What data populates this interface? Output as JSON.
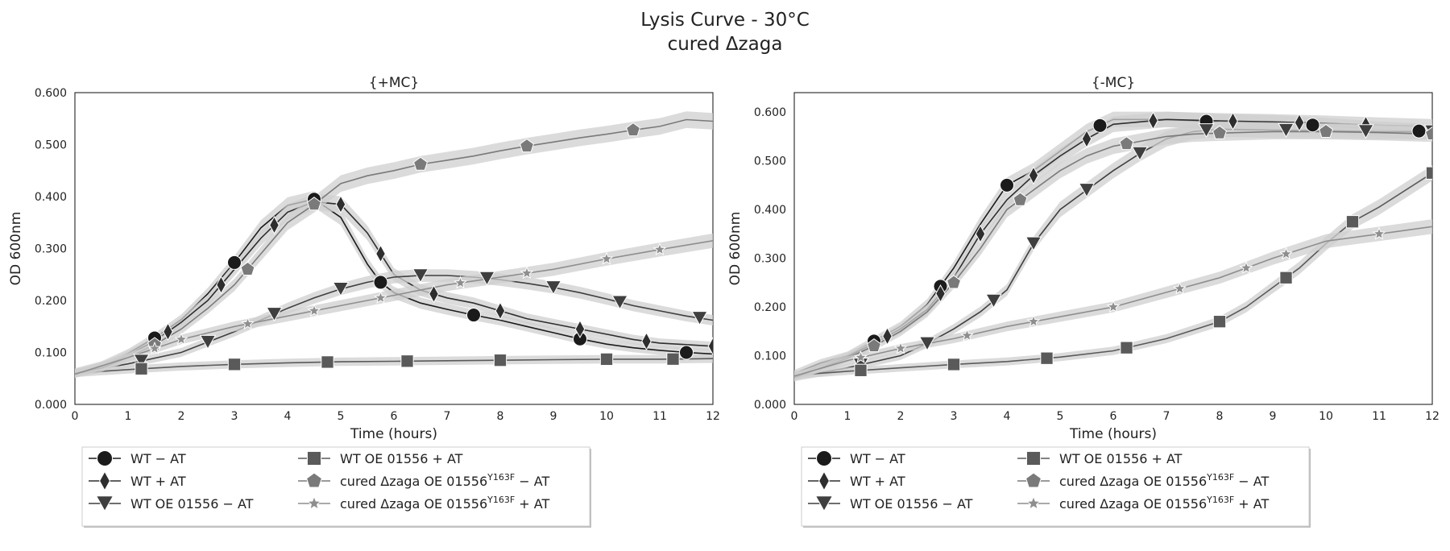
{
  "figure": {
    "title_line1": "Lysis Curve - 30°C",
    "title_line2": "cured Δzaga"
  },
  "colors": {
    "wt_minus_at": "#1b1b1b",
    "wt_plus_at": "#2e2e2e",
    "wtoe_minus_at": "#3f3f3f",
    "wtoe_plus_at": "#5a5a5a",
    "cured_minus_at": "#7a7a7a",
    "cured_plus_at": "#8e8e8e",
    "band": "#cfcfcf"
  },
  "chart_data": [
    {
      "type": "line",
      "title": "{+MC}",
      "xlabel": "Time (hours)",
      "ylabel": "OD 600nm",
      "xlim": [
        0,
        12
      ],
      "ylim": [
        0,
        0.6
      ],
      "xticks": [
        "0",
        "1",
        "2",
        "3",
        "4",
        "5",
        "6",
        "7",
        "8",
        "9",
        "10",
        "11",
        "12"
      ],
      "yticks": [
        "0.000",
        "0.100",
        "0.200",
        "0.300",
        "0.400",
        "0.500",
        "0.600"
      ],
      "grid": false,
      "legend_position": "below-left",
      "series": [
        {
          "key": "wt_minus_at",
          "marker": "circle",
          "x": [
            0,
            0.5,
            1,
            1.5,
            2,
            2.5,
            3,
            3.5,
            4,
            4.5,
            5,
            5.5,
            5.75,
            6,
            6.5,
            7,
            7.5,
            8,
            8.5,
            9,
            9.5,
            10,
            10.5,
            11,
            11.5,
            12
          ],
          "y": [
            0.062,
            0.075,
            0.098,
            0.128,
            0.163,
            0.213,
            0.273,
            0.34,
            0.383,
            0.395,
            0.36,
            0.27,
            0.235,
            0.215,
            0.195,
            0.183,
            0.172,
            0.162,
            0.15,
            0.138,
            0.126,
            0.116,
            0.109,
            0.104,
            0.1,
            0.097
          ],
          "markers_x": [
            1.5,
            3,
            4.5,
            5.75,
            7.5,
            9.5,
            11.5
          ]
        },
        {
          "key": "wt_plus_at",
          "marker": "diamond",
          "x": [
            0,
            0.5,
            1,
            1.5,
            2,
            2.5,
            3,
            3.5,
            4,
            4.5,
            5,
            5.5,
            6,
            6.5,
            7,
            7.5,
            8,
            8.5,
            9,
            9.5,
            10,
            10.5,
            11,
            11.5,
            12
          ],
          "y": [
            0.06,
            0.072,
            0.095,
            0.122,
            0.158,
            0.2,
            0.26,
            0.32,
            0.37,
            0.39,
            0.385,
            0.33,
            0.25,
            0.22,
            0.205,
            0.195,
            0.18,
            0.165,
            0.155,
            0.145,
            0.135,
            0.125,
            0.118,
            0.115,
            0.112
          ],
          "markers_x": [
            1.75,
            2.75,
            3.75,
            5,
            5.75,
            6.75,
            8,
            9.5,
            10.75,
            12
          ]
        },
        {
          "key": "wtoe_minus_at",
          "marker": "triangle-down",
          "x": [
            0,
            1,
            2,
            3,
            4,
            4.5,
            5,
            5.5,
            6,
            6.5,
            7,
            7.5,
            8,
            8.5,
            9,
            9.5,
            10,
            10.5,
            11,
            11.5,
            12
          ],
          "y": [
            0.06,
            0.078,
            0.1,
            0.14,
            0.185,
            0.205,
            0.222,
            0.235,
            0.245,
            0.248,
            0.248,
            0.245,
            0.24,
            0.233,
            0.225,
            0.215,
            0.203,
            0.19,
            0.18,
            0.17,
            0.162
          ],
          "markers_x": [
            1.25,
            2.5,
            3.75,
            5,
            6.5,
            7.75,
            9,
            10.25,
            11.75
          ]
        },
        {
          "key": "wtoe_plus_at",
          "marker": "square",
          "x": [
            0,
            1,
            2,
            3,
            4,
            5,
            6,
            7,
            8,
            9,
            10,
            11,
            12
          ],
          "y": [
            0.06,
            0.067,
            0.073,
            0.077,
            0.08,
            0.082,
            0.083,
            0.084,
            0.085,
            0.086,
            0.087,
            0.087,
            0.088
          ],
          "markers_x": [
            1.25,
            3,
            4.75,
            6.25,
            8,
            10,
            11.25
          ]
        },
        {
          "key": "cured_minus_at",
          "marker": "pentagon",
          "x": [
            0,
            0.5,
            1,
            1.5,
            2,
            2.5,
            3,
            3.5,
            4,
            4.5,
            5,
            5.5,
            6,
            6.5,
            7,
            7.5,
            8,
            8.5,
            9,
            9.5,
            10,
            10.5,
            11,
            11.5,
            12
          ],
          "y": [
            0.06,
            0.07,
            0.09,
            0.115,
            0.145,
            0.185,
            0.23,
            0.29,
            0.35,
            0.385,
            0.425,
            0.44,
            0.45,
            0.462,
            0.47,
            0.478,
            0.488,
            0.497,
            0.505,
            0.513,
            0.52,
            0.528,
            0.535,
            0.548,
            0.545
          ],
          "markers_x": [
            1.5,
            3.25,
            4.5,
            6.5,
            8.5,
            10.5
          ]
        },
        {
          "key": "cured_plus_at",
          "marker": "star",
          "x": [
            0,
            1,
            2,
            3,
            4,
            5,
            6,
            7,
            8,
            9,
            10,
            11,
            12
          ],
          "y": [
            0.058,
            0.09,
            0.125,
            0.15,
            0.17,
            0.19,
            0.21,
            0.23,
            0.245,
            0.26,
            0.28,
            0.298,
            0.315
          ],
          "markers_x": [
            1.5,
            2,
            3.25,
            4.5,
            5.75,
            7.25,
            8.5,
            10,
            11
          ]
        }
      ]
    },
    {
      "type": "line",
      "title": "{-MC}",
      "xlabel": "Time (hours)",
      "ylabel": "OD 600nm",
      "xlim": [
        0,
        12
      ],
      "ylim": [
        0,
        0.64
      ],
      "xticks": [
        "0",
        "1",
        "2",
        "3",
        "4",
        "5",
        "6",
        "7",
        "8",
        "9",
        "10",
        "11",
        "12"
      ],
      "yticks": [
        "0.000",
        "0.100",
        "0.200",
        "0.300",
        "0.400",
        "0.500",
        "0.600"
      ],
      "grid": false,
      "legend_position": "below-left",
      "series": [
        {
          "key": "wt_minus_at",
          "marker": "circle",
          "x": [
            0,
            0.5,
            1,
            1.5,
            2,
            2.5,
            3,
            3.5,
            4,
            4.5,
            5,
            5.5,
            6,
            7,
            8,
            9,
            10,
            11,
            12
          ],
          "y": [
            0.063,
            0.085,
            0.1,
            0.13,
            0.16,
            0.205,
            0.28,
            0.37,
            0.45,
            0.48,
            0.52,
            0.56,
            0.585,
            0.585,
            0.58,
            0.578,
            0.572,
            0.565,
            0.56
          ],
          "markers_x": [
            1.5,
            2.75,
            4,
            5.75,
            7.75,
            9.75,
            11.75
          ]
        },
        {
          "key": "wt_plus_at",
          "marker": "diamond",
          "x": [
            0,
            0.5,
            1,
            1.5,
            2,
            2.5,
            3,
            3.5,
            4,
            4.5,
            5,
            5.5,
            6,
            7,
            8,
            9,
            10,
            11,
            12
          ],
          "y": [
            0.058,
            0.08,
            0.098,
            0.125,
            0.155,
            0.195,
            0.26,
            0.35,
            0.42,
            0.47,
            0.51,
            0.545,
            0.575,
            0.585,
            0.582,
            0.58,
            0.577,
            0.573,
            0.57
          ],
          "markers_x": [
            1.75,
            2.75,
            3.5,
            4.5,
            5.5,
            6.75,
            8.25,
            9.5,
            10.75
          ]
        },
        {
          "key": "wtoe_minus_at",
          "marker": "triangle-down",
          "x": [
            0,
            1,
            2,
            2.5,
            3,
            3.5,
            4,
            4.5,
            5,
            5.5,
            6,
            6.5,
            7,
            7.5,
            8,
            9,
            10,
            11,
            12
          ],
          "y": [
            0.055,
            0.075,
            0.1,
            0.125,
            0.155,
            0.19,
            0.235,
            0.33,
            0.4,
            0.44,
            0.48,
            0.515,
            0.545,
            0.56,
            0.565,
            0.563,
            0.562,
            0.56,
            0.56
          ],
          "markers_x": [
            1.25,
            2.5,
            3.75,
            4.5,
            5.5,
            6.5,
            7.75,
            9.25,
            10.75,
            12
          ]
        },
        {
          "key": "wtoe_plus_at",
          "marker": "square",
          "x": [
            0,
            1,
            2,
            3,
            4,
            5,
            6,
            7,
            8,
            8.5,
            9,
            9.5,
            10,
            10.5,
            11,
            11.5,
            12
          ],
          "y": [
            0.06,
            0.068,
            0.075,
            0.082,
            0.088,
            0.097,
            0.11,
            0.135,
            0.17,
            0.2,
            0.24,
            0.28,
            0.33,
            0.375,
            0.405,
            0.44,
            0.475
          ],
          "markers_x": [
            1.25,
            3,
            4.75,
            6.25,
            8,
            9.25,
            10.5,
            12
          ]
        },
        {
          "key": "cured_minus_at",
          "marker": "pentagon",
          "x": [
            0,
            0.5,
            1,
            1.5,
            2,
            2.5,
            3,
            3.5,
            4,
            4.5,
            5,
            5.5,
            6,
            6.5,
            7,
            7.5,
            8,
            9,
            10,
            11,
            12
          ],
          "y": [
            0.055,
            0.075,
            0.095,
            0.12,
            0.15,
            0.19,
            0.25,
            0.32,
            0.4,
            0.44,
            0.48,
            0.51,
            0.53,
            0.54,
            0.55,
            0.555,
            0.557,
            0.56,
            0.56,
            0.558,
            0.555
          ],
          "markers_x": [
            1.5,
            3,
            4.25,
            6.25,
            8,
            10,
            12
          ]
        },
        {
          "key": "cured_plus_at",
          "marker": "star",
          "x": [
            0,
            1,
            2,
            3,
            4,
            5,
            6,
            7,
            8,
            9,
            10,
            11,
            12
          ],
          "y": [
            0.058,
            0.09,
            0.115,
            0.135,
            0.16,
            0.18,
            0.2,
            0.23,
            0.26,
            0.3,
            0.335,
            0.35,
            0.365
          ],
          "markers_x": [
            1.25,
            2,
            3.25,
            4.5,
            6,
            7.25,
            8.5,
            9.25,
            11
          ]
        }
      ]
    }
  ],
  "legend": {
    "col1": [
      {
        "key": "wt_minus_at",
        "marker": "circle",
        "label": "WT  − AT"
      },
      {
        "key": "wt_plus_at",
        "marker": "diamond",
        "label": "WT  + AT"
      },
      {
        "key": "wtoe_minus_at",
        "marker": "triangle-down",
        "label": "WT OE 01556  − AT"
      }
    ],
    "col2": [
      {
        "key": "wtoe_plus_at",
        "marker": "square",
        "label": "WT OE 01556  + AT",
        "sup": "",
        "suffix": ""
      },
      {
        "key": "cured_minus_at",
        "marker": "pentagon",
        "label": "cured Δzaga OE 01556",
        "sup": "Y163F",
        "suffix": " − AT"
      },
      {
        "key": "cured_plus_at",
        "marker": "star",
        "label": "cured Δzaga OE 01556",
        "sup": "Y163F",
        "suffix": " + AT"
      }
    ]
  }
}
